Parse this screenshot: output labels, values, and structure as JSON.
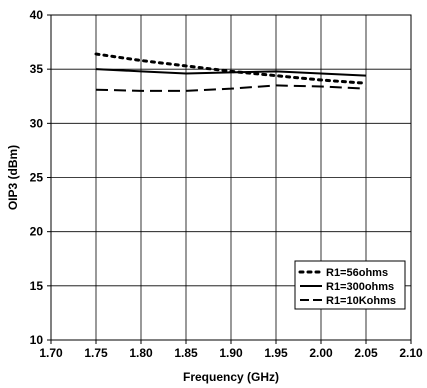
{
  "chart_data": {
    "type": "line",
    "xlabel": "Frequency (GHz)",
    "ylabel": "OIP3 (dBm)",
    "xlim": [
      1.7,
      2.1
    ],
    "ylim": [
      10,
      40
    ],
    "xticks": [
      "1.70",
      "1.75",
      "1.80",
      "1.85",
      "1.90",
      "1.95",
      "2.00",
      "2.05",
      "2.10"
    ],
    "yticks": [
      "10",
      "15",
      "20",
      "25",
      "30",
      "35",
      "40"
    ],
    "grid": true,
    "legend_position": "bottom-right",
    "series": [
      {
        "name": "R1=56ohms",
        "style": "dotted",
        "color": "#000000",
        "x": [
          1.75,
          1.8,
          1.85,
          1.9,
          1.95,
          2.0,
          2.05
        ],
        "y": [
          36.4,
          35.8,
          35.3,
          34.8,
          34.4,
          34.0,
          33.7
        ]
      },
      {
        "name": "R1=300ohms",
        "style": "solid",
        "color": "#000000",
        "x": [
          1.75,
          1.8,
          1.85,
          1.9,
          1.95,
          2.0,
          2.05
        ],
        "y": [
          35.0,
          34.8,
          34.6,
          34.7,
          34.8,
          34.6,
          34.4
        ]
      },
      {
        "name": "R1=10Kohms",
        "style": "dashed",
        "color": "#000000",
        "x": [
          1.75,
          1.8,
          1.85,
          1.9,
          1.95,
          2.0,
          2.05
        ],
        "y": [
          33.1,
          33.0,
          33.0,
          33.2,
          33.5,
          33.4,
          33.2
        ]
      }
    ]
  }
}
